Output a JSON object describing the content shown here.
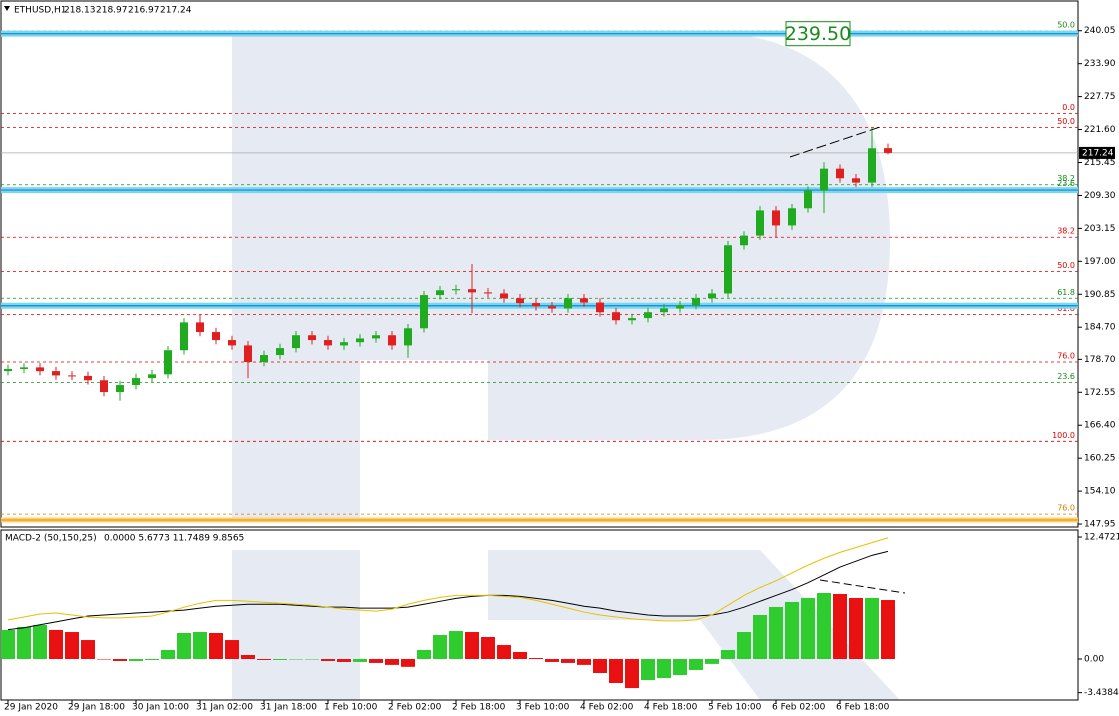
{
  "chart_data": [
    {
      "type": "candlestick",
      "symbol": "ETHUSD,H1",
      "xlabels": [
        "29 Jan 2020",
        "29 Jan 18:00",
        "30 Jan 10:00",
        "31 Jan 02:00",
        "31 Jan 18:00",
        "1 Feb 10:00",
        "2 Feb 02:00",
        "2 Feb 18:00",
        "3 Feb 10:00",
        "4 Feb 02:00",
        "4 Feb 18:00",
        "5 Feb 10:00",
        "6 Feb 02:00",
        "6 Feb 18:00"
      ],
      "open": [
        176.5,
        176.9,
        177.2,
        176.5,
        175.7,
        175.6,
        174.8,
        172.6,
        173.9,
        175.2,
        175.9,
        180.4,
        185.6,
        183.8,
        182.3,
        181.3,
        178.2,
        179.5,
        180.8,
        183.2,
        182.3,
        181.3,
        181.9,
        182.6,
        183.2,
        181.3,
        184.5,
        190.7,
        191.6,
        191.8,
        191.2,
        191.0,
        190.1,
        189.2,
        188.6,
        188.2,
        190.1,
        189.3,
        187.5,
        186.0,
        186.4,
        187.5,
        188.2,
        188.8,
        190.1,
        191.0,
        200.0,
        201.8,
        206.5,
        203.7,
        206.9,
        210.2,
        214.3,
        212.5,
        211.7,
        218.13
      ],
      "high": [
        177.7,
        178.0,
        178.0,
        177.3,
        176.5,
        176.4,
        175.6,
        174.7,
        176.0,
        176.7,
        181.2,
        186.4,
        187.0,
        184.6,
        183.1,
        182.1,
        180.3,
        181.6,
        184.0,
        184.0,
        183.1,
        182.7,
        183.4,
        184.0,
        184.0,
        185.3,
        191.5,
        192.4,
        192.6,
        196.5,
        192.0,
        191.8,
        190.9,
        190.0,
        189.4,
        190.9,
        190.9,
        190.1,
        188.3,
        187.2,
        188.3,
        189.0,
        189.6,
        190.9,
        191.8,
        200.8,
        202.6,
        207.3,
        207.3,
        207.7,
        211.0,
        215.5,
        215.1,
        213.3,
        222.0,
        218.97
      ],
      "low": [
        175.7,
        176.1,
        175.7,
        174.9,
        174.8,
        174.0,
        171.8,
        171.0,
        173.1,
        174.4,
        175.1,
        179.6,
        183.0,
        181.5,
        180.5,
        175.2,
        177.4,
        178.7,
        180.0,
        181.5,
        180.5,
        180.5,
        181.1,
        181.8,
        180.5,
        179.0,
        183.7,
        189.9,
        190.8,
        187.3,
        190.2,
        189.3,
        188.4,
        187.8,
        187.4,
        187.4,
        188.5,
        186.7,
        185.2,
        185.2,
        185.6,
        186.7,
        187.4,
        188.0,
        189.3,
        190.2,
        199.2,
        201.0,
        201.4,
        202.9,
        206.1,
        206.0,
        211.7,
        210.9,
        210.9,
        216.97
      ],
      "close": [
        176.9,
        177.2,
        176.5,
        175.7,
        175.6,
        174.8,
        172.6,
        173.9,
        175.2,
        175.9,
        180.4,
        185.6,
        183.8,
        182.3,
        181.3,
        178.2,
        179.5,
        180.8,
        183.2,
        182.3,
        181.3,
        181.9,
        182.6,
        183.2,
        181.3,
        184.5,
        190.7,
        191.6,
        191.8,
        191.2,
        191.0,
        190.1,
        189.2,
        188.6,
        188.2,
        190.1,
        189.3,
        187.5,
        186.0,
        186.4,
        187.5,
        188.2,
        188.8,
        190.1,
        191.0,
        200.0,
        201.8,
        206.5,
        203.7,
        206.9,
        210.2,
        214.3,
        212.5,
        211.7,
        218.1,
        217.24
      ],
      "up_color": "#1faa1f",
      "down_color": "#e02020",
      "ylim": [
        147.4,
        245.6
      ],
      "yticks": [
        {
          "value": 240.05,
          "label": "240.05"
        },
        {
          "value": 233.9,
          "label": "233.90"
        },
        {
          "value": 227.75,
          "label": "227.75"
        },
        {
          "value": 221.6,
          "label": "221.60"
        },
        {
          "value": 215.45,
          "label": "215.45"
        },
        {
          "value": 209.3,
          "label": "209.30"
        },
        {
          "value": 203.15,
          "label": "203.15"
        },
        {
          "value": 197,
          "label": "197.00"
        },
        {
          "value": 190.85,
          "label": "190.85"
        },
        {
          "value": 184.7,
          "label": "184.70"
        },
        {
          "value": 178.7,
          "label": "178.70"
        },
        {
          "value": 172.55,
          "label": "172.55"
        },
        {
          "value": 166.4,
          "label": "166.40"
        },
        {
          "value": 160.25,
          "label": "160.25"
        },
        {
          "value": 154.1,
          "label": "154.10"
        },
        {
          "value": 147.95,
          "label": "147.95"
        }
      ],
      "blue_levels": [
        {
          "value": 239.5,
          "label": "239.50"
        },
        210.3,
        188.7
      ],
      "orange_level": 148.7,
      "fib_levels": [
        {
          "value": 240.0,
          "label": "50.0",
          "color": "#1a8c1a"
        },
        {
          "value": 224.6,
          "label": "0.0",
          "color": "#e00000"
        },
        {
          "value": 222.0,
          "label": "50.0",
          "color": "#e00000"
        },
        {
          "value": 211.3,
          "label": "38.2",
          "color": "#1a8c1a"
        },
        {
          "value": 210.4,
          "label": "23.6",
          "color": "#1a8c1a"
        },
        {
          "value": 201.5,
          "label": "38.2",
          "color": "#e00000"
        },
        {
          "value": 195.1,
          "label": "50.0",
          "color": "#e00000"
        },
        {
          "value": 190.1,
          "label": "61.8",
          "color": "#1a8c1a"
        },
        {
          "value": 187.1,
          "label": "61.8",
          "color": "#e00000"
        },
        {
          "value": 178.2,
          "label": "76.0",
          "color": "#e00000"
        },
        {
          "value": 174.4,
          "label": "23.6",
          "color": "#1a8c1a"
        },
        {
          "value": 163.4,
          "label": "100.0",
          "color": "#e00000"
        },
        {
          "value": 149.8,
          "label": "76.0",
          "color": "#d08000"
        }
      ]
    },
    {
      "type": "macd",
      "title": "MACD-2 (50,150,25)",
      "readout": "0.0000 5.6773 11.7489 9.8565",
      "histogram": [
        2.97,
        3.27,
        3.48,
        2.97,
        2.76,
        1.94,
        0,
        -0.2,
        -0.2,
        -0.1,
        0.92,
        2.66,
        2.76,
        2.66,
        1.94,
        0.41,
        -0.1,
        -0.1,
        0,
        0,
        -0.2,
        -0.3,
        -0.3,
        -0.4,
        -0.6,
        -0.8,
        0.92,
        2.45,
        2.86,
        2.76,
        2.25,
        1.43,
        0.72,
        0.1,
        -0.3,
        -0.4,
        -0.6,
        -1.43,
        -2.45,
        -2.97,
        -2.15,
        -1.94,
        -1.64,
        -1.12,
        -0.5,
        0.92,
        2.76,
        4.5,
        5.32,
        5.83,
        6.24,
        6.75,
        6.65,
        6.24,
        6.24,
        6.03
      ],
      "up_color": "#2ecc2e",
      "down_color": "#e81010",
      "series": [
        {
          "color": "#000000",
          "values": [
            3.0,
            3.2,
            3.5,
            3.8,
            4.1,
            4.4,
            4.5,
            4.6,
            4.7,
            4.8,
            4.9,
            5.0,
            5.2,
            5.4,
            5.5,
            5.6,
            5.6,
            5.6,
            5.5,
            5.4,
            5.3,
            5.3,
            5.2,
            5.2,
            5.2,
            5.3,
            5.6,
            5.9,
            6.2,
            6.4,
            6.5,
            6.5,
            6.4,
            6.2,
            6.0,
            5.7,
            5.4,
            5.2,
            4.9,
            4.7,
            4.5,
            4.4,
            4.4,
            4.4,
            4.5,
            4.8,
            5.3,
            5.9,
            6.5,
            7.1,
            7.8,
            8.6,
            9.4,
            10.0,
            10.6,
            11.0
          ]
        },
        {
          "color": "#e8c000",
          "values": [
            4.0,
            4.3,
            4.6,
            4.7,
            4.5,
            4.3,
            4.2,
            4.2,
            4.3,
            4.4,
            4.8,
            5.3,
            5.7,
            6.0,
            6.0,
            5.9,
            5.8,
            5.7,
            5.6,
            5.5,
            5.3,
            5.1,
            5.0,
            4.9,
            5.1,
            5.6,
            6.0,
            6.3,
            6.5,
            6.5,
            6.5,
            6.4,
            6.3,
            6.0,
            5.6,
            5.2,
            4.8,
            4.5,
            4.3,
            4.1,
            4.0,
            3.9,
            3.9,
            4.0,
            4.5,
            5.5,
            6.5,
            7.3,
            8.0,
            8.8,
            9.6,
            10.3,
            10.9,
            11.4,
            11.9,
            12.4
          ]
        }
      ],
      "ylim": [
        -4.19,
        13.19
      ],
      "yticks": [
        12.4721,
        {
          "value": 0,
          "label": "0.00"
        },
        -3.4384
      ]
    }
  ]
}
